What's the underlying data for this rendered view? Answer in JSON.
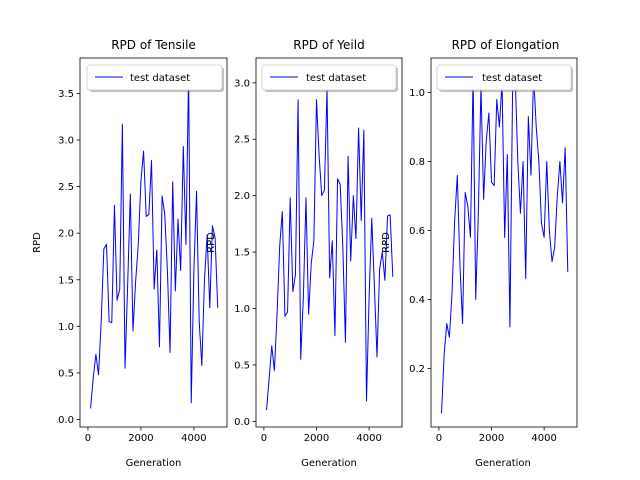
{
  "chart_data": [
    {
      "type": "line",
      "title": "RPD of Tensile",
      "xlabel": "Generation",
      "ylabel": "RPD",
      "xlim": [
        -300,
        5250
      ],
      "ylim": [
        -0.08,
        3.88
      ],
      "xticks": [
        0,
        2000,
        4000
      ],
      "xtick_labels": [
        "0",
        "2000",
        "4000"
      ],
      "yticks": [
        0.0,
        0.5,
        1.0,
        1.5,
        2.0,
        2.5,
        3.0,
        3.5
      ],
      "ytick_labels": [
        "0.0",
        "0.5",
        "1.0",
        "1.5",
        "2.0",
        "2.5",
        "3.0",
        "3.5"
      ],
      "legend_position": "top-right",
      "series": [
        {
          "name": "test dataset",
          "color": "#0000ff",
          "x": [
            100,
            200,
            300,
            400,
            500,
            600,
            700,
            800,
            900,
            1000,
            1100,
            1200,
            1300,
            1400,
            1500,
            1600,
            1700,
            1800,
            1900,
            2000,
            2100,
            2200,
            2300,
            2400,
            2500,
            2600,
            2700,
            2800,
            2900,
            3000,
            3100,
            3200,
            3300,
            3400,
            3500,
            3600,
            3700,
            3800,
            3900,
            4000,
            4100,
            4200,
            4300,
            4400,
            4500,
            4600,
            4700,
            4800,
            4900
          ],
          "y": [
            0.12,
            0.45,
            0.7,
            0.48,
            1.05,
            1.83,
            1.88,
            1.05,
            1.04,
            2.3,
            1.28,
            1.4,
            3.17,
            0.55,
            1.45,
            2.42,
            0.95,
            1.48,
            1.88,
            2.56,
            2.88,
            2.18,
            2.2,
            2.78,
            1.4,
            1.82,
            0.78,
            2.4,
            2.2,
            1.6,
            0.72,
            2.55,
            1.38,
            2.15,
            1.6,
            2.93,
            1.88,
            3.72,
            0.18,
            1.6,
            2.45,
            1.05,
            0.58,
            1.5,
            1.98,
            1.2,
            2.08,
            1.95,
            1.2
          ]
        }
      ]
    },
    {
      "type": "line",
      "title": "RPD of Yeild",
      "xlabel": "Generation",
      "ylabel": "RPD",
      "xlim": [
        -300,
        5250
      ],
      "ylim": [
        -0.05,
        3.22
      ],
      "xticks": [
        0,
        2000,
        4000
      ],
      "xtick_labels": [
        "0",
        "2000",
        "4000"
      ],
      "yticks": [
        0.0,
        0.5,
        1.0,
        1.5,
        2.0,
        2.5,
        3.0
      ],
      "ytick_labels": [
        "0.0",
        "0.5",
        "1.0",
        "1.5",
        "2.0",
        "2.5",
        "3.0"
      ],
      "legend_position": "top-right",
      "series": [
        {
          "name": "test dataset",
          "color": "#0000ff",
          "x": [
            100,
            200,
            300,
            400,
            500,
            600,
            700,
            800,
            900,
            1000,
            1100,
            1200,
            1300,
            1400,
            1500,
            1600,
            1700,
            1800,
            1900,
            2000,
            2100,
            2200,
            2300,
            2400,
            2500,
            2600,
            2700,
            2800,
            2900,
            3000,
            3100,
            3200,
            3300,
            3400,
            3500,
            3600,
            3700,
            3800,
            3900,
            4000,
            4100,
            4200,
            4300,
            4400,
            4500,
            4600,
            4700,
            4800,
            4900
          ],
          "y": [
            0.1,
            0.38,
            0.67,
            0.45,
            0.95,
            1.55,
            1.86,
            0.93,
            0.97,
            1.98,
            1.15,
            1.3,
            2.85,
            0.55,
            1.1,
            1.98,
            0.95,
            1.4,
            1.6,
            2.85,
            2.35,
            2.0,
            2.05,
            2.95,
            1.27,
            1.6,
            0.76,
            2.15,
            2.1,
            1.55,
            0.7,
            2.35,
            1.42,
            2.0,
            1.62,
            2.6,
            1.78,
            2.58,
            0.18,
            1.1,
            1.8,
            1.2,
            0.57,
            1.35,
            1.5,
            1.25,
            1.82,
            1.83,
            1.28
          ]
        }
      ]
    },
    {
      "type": "line",
      "title": "RPD of Elongation",
      "xlabel": "Generation",
      "ylabel": "RPD",
      "xlim": [
        -300,
        5250
      ],
      "ylim": [
        0.03,
        1.1
      ],
      "xticks": [
        0,
        2000,
        4000
      ],
      "xtick_labels": [
        "0",
        "2000",
        "4000"
      ],
      "yticks": [
        0.2,
        0.4,
        0.6,
        0.8,
        1.0
      ],
      "ytick_labels": [
        "0.2",
        "0.4",
        "0.6",
        "0.8",
        "1.0"
      ],
      "legend_position": "top-right",
      "series": [
        {
          "name": "test dataset",
          "color": "#0000ff",
          "x": [
            100,
            200,
            300,
            400,
            500,
            600,
            700,
            800,
            900,
            1000,
            1100,
            1200,
            1300,
            1400,
            1500,
            1600,
            1700,
            1800,
            1900,
            2000,
            2100,
            2200,
            2300,
            2400,
            2500,
            2600,
            2700,
            2800,
            2900,
            3000,
            3100,
            3200,
            3300,
            3400,
            3500,
            3600,
            3700,
            3800,
            3900,
            4000,
            4100,
            4200,
            4300,
            4400,
            4500,
            4600,
            4700,
            4800,
            4900
          ],
          "y": [
            0.07,
            0.24,
            0.33,
            0.29,
            0.42,
            0.63,
            0.76,
            0.5,
            0.33,
            0.71,
            0.67,
            0.58,
            1.05,
            0.4,
            0.65,
            1.02,
            0.69,
            0.86,
            0.94,
            0.74,
            0.73,
            0.98,
            0.9,
            1.03,
            0.58,
            0.82,
            0.32,
            1.0,
            1.05,
            0.8,
            0.65,
            0.8,
            0.46,
            0.93,
            0.76,
            1.05,
            0.9,
            0.8,
            0.62,
            0.58,
            0.8,
            0.6,
            0.51,
            0.55,
            0.7,
            0.8,
            0.68,
            0.84,
            0.48
          ]
        }
      ]
    }
  ]
}
